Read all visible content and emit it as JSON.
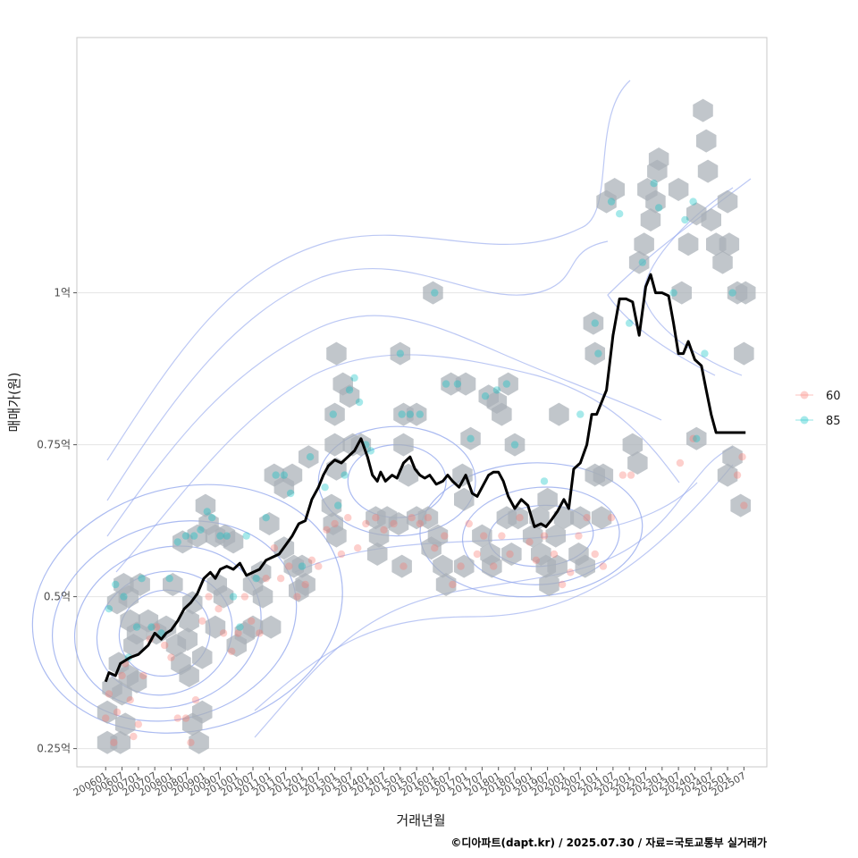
{
  "chart_data": {
    "type": "line",
    "xlabel": "거래년월",
    "ylabel": "매매가(원)",
    "caption": "©디아파트(dapt.kr) / 2025.07.30 / 자료=국토교통부 실거래가",
    "y_ticks": [
      {
        "value": 0.25,
        "label": "0.25억"
      },
      {
        "value": 0.5,
        "label": "0.5억"
      },
      {
        "value": 0.75,
        "label": "0.75억"
      },
      {
        "value": 1.0,
        "label": "1억"
      }
    ],
    "ylim": [
      0.22,
      1.42
    ],
    "xlim": [
      2005.12,
      2026.2
    ],
    "x_ticks": [
      "200601",
      "200607",
      "200701",
      "200707",
      "200801",
      "200807",
      "200901",
      "200907",
      "201001",
      "201007",
      "201101",
      "201107",
      "201201",
      "201207",
      "201301",
      "201307",
      "201401",
      "201407",
      "201501",
      "201507",
      "201601",
      "201607",
      "201701",
      "201707",
      "201801",
      "201807",
      "201901",
      "201907",
      "202001",
      "202007",
      "202101",
      "202107",
      "202201",
      "202207",
      "202301",
      "202307",
      "202401",
      "202407",
      "202501",
      "202507"
    ],
    "legend": {
      "title": "",
      "position": "right",
      "entries": [
        {
          "label": "60",
          "color": "#F8766D"
        },
        {
          "label": "85",
          "color": "#00BFC4"
        }
      ]
    },
    "colors": {
      "hex": "#a9b0b7",
      "line": "#000000",
      "contour": "#8fa4ec",
      "grid": "#e5e5e5",
      "panel_border": "#c8c8c8"
    },
    "trend_line": {
      "name": "median price",
      "x": [
        2006.0,
        2006.1,
        2006.3,
        2006.45,
        2006.6,
        2006.75,
        2007.0,
        2007.3,
        2007.5,
        2007.7,
        2007.85,
        2008.0,
        2008.2,
        2008.4,
        2008.6,
        2008.8,
        2009.0,
        2009.2,
        2009.35,
        2009.5,
        2009.7,
        2009.9,
        2010.1,
        2010.3,
        2010.5,
        2010.7,
        2010.9,
        2011.1,
        2011.3,
        2011.5,
        2011.7,
        2011.9,
        2012.1,
        2012.3,
        2012.5,
        2012.65,
        2012.8,
        2013.0,
        2013.2,
        2013.4,
        2013.6,
        2013.8,
        2014.0,
        2014.15,
        2014.3,
        2014.4,
        2014.55,
        2014.75,
        2014.9,
        2015.1,
        2015.3,
        2015.45,
        2015.6,
        2015.75,
        2015.9,
        2016.1,
        2016.3,
        2016.45,
        2016.6,
        2016.8,
        2017.0,
        2017.2,
        2017.35,
        2017.5,
        2017.7,
        2017.85,
        2018.0,
        2018.15,
        2018.3,
        2018.5,
        2018.7,
        2018.9,
        2019.1,
        2019.3,
        2019.45,
        2019.6,
        2019.8,
        2020.0,
        2020.15,
        2020.3,
        2020.5,
        2020.7,
        2020.85,
        2021.0,
        2021.15,
        2021.3,
        2021.5,
        2021.7,
        2021.9,
        2022.1,
        2022.3,
        2022.5,
        2022.65,
        2022.8,
        2023.0,
        2023.2,
        2023.35,
        2023.5,
        2023.65,
        2023.8,
        2024.0,
        2024.2,
        2024.35,
        2024.5,
        2024.65,
        2024.8,
        2024.95,
        2025.1,
        2025.25,
        2025.4,
        2025.55
      ],
      "y": [
        0.36,
        0.375,
        0.37,
        0.39,
        0.395,
        0.4,
        0.405,
        0.42,
        0.44,
        0.43,
        0.44,
        0.445,
        0.46,
        0.48,
        0.49,
        0.505,
        0.53,
        0.54,
        0.53,
        0.545,
        0.55,
        0.545,
        0.555,
        0.535,
        0.54,
        0.545,
        0.56,
        0.565,
        0.57,
        0.585,
        0.6,
        0.62,
        0.625,
        0.66,
        0.68,
        0.7,
        0.715,
        0.725,
        0.72,
        0.73,
        0.74,
        0.76,
        0.73,
        0.7,
        0.69,
        0.705,
        0.69,
        0.7,
        0.695,
        0.72,
        0.73,
        0.71,
        0.7,
        0.695,
        0.7,
        0.685,
        0.69,
        0.7,
        0.69,
        0.68,
        0.7,
        0.67,
        0.665,
        0.68,
        0.7,
        0.705,
        0.705,
        0.69,
        0.665,
        0.645,
        0.66,
        0.65,
        0.615,
        0.62,
        0.615,
        0.625,
        0.64,
        0.66,
        0.645,
        0.71,
        0.72,
        0.75,
        0.8,
        0.8,
        0.82,
        0.84,
        0.93,
        0.99,
        0.99,
        0.985,
        0.93,
        1.01,
        1.03,
        1.0,
        1.0,
        0.995,
        0.95,
        0.9,
        0.9,
        0.92,
        0.89,
        0.88,
        0.84,
        0.8,
        0.77,
        0.77,
        0.77,
        0.77,
        0.77,
        0.77,
        0.77
      ]
    },
    "hexbin_cells": [
      [
        2006.05,
        0.26
      ],
      [
        2006.05,
        0.31
      ],
      [
        2006.2,
        0.35
      ],
      [
        2006.4,
        0.39
      ],
      [
        2006.5,
        0.34
      ],
      [
        2006.45,
        0.26
      ],
      [
        2006.6,
        0.29
      ],
      [
        2006.7,
        0.37
      ],
      [
        2006.85,
        0.42
      ],
      [
        2006.95,
        0.44
      ],
      [
        2006.95,
        0.36
      ],
      [
        2006.75,
        0.46
      ],
      [
        2006.7,
        0.5
      ],
      [
        2006.35,
        0.49
      ],
      [
        2006.55,
        0.52
      ],
      [
        2007.05,
        0.52
      ],
      [
        2007.3,
        0.46
      ],
      [
        2007.55,
        0.44
      ],
      [
        2007.85,
        0.45
      ],
      [
        2008.05,
        0.52
      ],
      [
        2008.15,
        0.42
      ],
      [
        2008.3,
        0.39
      ],
      [
        2008.5,
        0.43
      ],
      [
        2008.55,
        0.37
      ],
      [
        2008.65,
        0.29
      ],
      [
        2008.85,
        0.26
      ],
      [
        2008.95,
        0.31
      ],
      [
        2008.95,
        0.4
      ],
      [
        2008.55,
        0.46
      ],
      [
        2008.65,
        0.49
      ],
      [
        2008.35,
        0.59
      ],
      [
        2008.8,
        0.6
      ],
      [
        2009.05,
        0.65
      ],
      [
        2009.15,
        0.62
      ],
      [
        2009.35,
        0.6
      ],
      [
        2009.4,
        0.52
      ],
      [
        2009.35,
        0.45
      ],
      [
        2009.6,
        0.5
      ],
      [
        2009.65,
        0.6
      ],
      [
        2009.9,
        0.59
      ],
      [
        2010.0,
        0.42
      ],
      [
        2010.25,
        0.44
      ],
      [
        2010.5,
        0.45
      ],
      [
        2010.5,
        0.52
      ],
      [
        2010.75,
        0.54
      ],
      [
        2010.8,
        0.5
      ],
      [
        2011.05,
        0.45
      ],
      [
        2011.0,
        0.62
      ],
      [
        2011.15,
        0.7
      ],
      [
        2011.45,
        0.68
      ],
      [
        2011.45,
        0.58
      ],
      [
        2011.7,
        0.7
      ],
      [
        2011.75,
        0.55
      ],
      [
        2011.9,
        0.51
      ],
      [
        2012.1,
        0.52
      ],
      [
        2012.0,
        0.55
      ],
      [
        2012.2,
        0.73
      ],
      [
        2012.9,
        0.65
      ],
      [
        2012.95,
        0.62
      ],
      [
        2013.05,
        0.6
      ],
      [
        2013.0,
        0.75
      ],
      [
        2013.05,
        0.71
      ],
      [
        2013.25,
        0.85
      ],
      [
        2013.45,
        0.83
      ],
      [
        2013.55,
        0.75
      ],
      [
        2013.8,
        0.75
      ],
      [
        2013.05,
        0.9
      ],
      [
        2013.0,
        0.8
      ],
      [
        2014.25,
        0.63
      ],
      [
        2014.35,
        0.6
      ],
      [
        2014.3,
        0.57
      ],
      [
        2014.6,
        0.63
      ],
      [
        2014.95,
        0.62
      ],
      [
        2015.05,
        0.55
      ],
      [
        2015.1,
        0.75
      ],
      [
        2015.1,
        0.8
      ],
      [
        2015.25,
        0.7
      ],
      [
        2015.5,
        0.63
      ],
      [
        2015.5,
        0.8
      ],
      [
        2015.85,
        0.63
      ],
      [
        2015.95,
        0.58
      ],
      [
        2016.15,
        0.6
      ],
      [
        2016.3,
        0.55
      ],
      [
        2016.4,
        0.52
      ],
      [
        2016.55,
        0.85
      ],
      [
        2016.9,
        0.7
      ],
      [
        2016.95,
        0.66
      ],
      [
        2016.95,
        0.55
      ],
      [
        2017.0,
        0.85
      ],
      [
        2017.15,
        0.76
      ],
      [
        2015.0,
        0.9
      ],
      [
        2016.0,
        1.0
      ],
      [
        2017.5,
        0.6
      ],
      [
        2017.75,
        0.57
      ],
      [
        2017.8,
        0.55
      ],
      [
        2017.7,
        0.83
      ],
      [
        2017.95,
        0.82
      ],
      [
        2018.1,
        0.8
      ],
      [
        2018.25,
        0.63
      ],
      [
        2018.4,
        0.57
      ],
      [
        2018.3,
        0.85
      ],
      [
        2018.5,
        0.75
      ],
      [
        2018.6,
        0.63
      ],
      [
        2019.05,
        0.6
      ],
      [
        2019.25,
        0.63
      ],
      [
        2019.3,
        0.57
      ],
      [
        2019.45,
        0.55
      ],
      [
        2019.5,
        0.66
      ],
      [
        2019.55,
        0.52
      ],
      [
        2019.75,
        0.6
      ],
      [
        2019.8,
        0.55
      ],
      [
        2019.85,
        0.8
      ],
      [
        2020.0,
        0.63
      ],
      [
        2020.45,
        0.57
      ],
      [
        2020.5,
        0.63
      ],
      [
        2020.65,
        0.55
      ],
      [
        2020.95,
        0.7
      ],
      [
        2021.15,
        0.63
      ],
      [
        2021.2,
        0.7
      ],
      [
        2020.9,
        0.95
      ],
      [
        2020.95,
        0.9
      ],
      [
        2021.3,
        1.15
      ],
      [
        2021.55,
        1.17
      ],
      [
        2022.1,
        0.75
      ],
      [
        2022.25,
        0.72
      ],
      [
        2022.3,
        1.05
      ],
      [
        2022.45,
        1.08
      ],
      [
        2022.55,
        1.17
      ],
      [
        2022.65,
        1.12
      ],
      [
        2022.8,
        1.15
      ],
      [
        2022.85,
        1.2
      ],
      [
        2022.9,
        1.22
      ],
      [
        2023.5,
        1.17
      ],
      [
        2023.6,
        1.0
      ],
      [
        2023.8,
        1.08
      ],
      [
        2024.05,
        1.13
      ],
      [
        2024.25,
        1.3
      ],
      [
        2024.35,
        1.25
      ],
      [
        2024.4,
        1.2
      ],
      [
        2024.5,
        1.12
      ],
      [
        2024.05,
        0.76
      ],
      [
        2024.65,
        1.08
      ],
      [
        2024.85,
        1.05
      ],
      [
        2025.0,
        1.15
      ],
      [
        2025.05,
        1.08
      ],
      [
        2025.3,
        1.0
      ],
      [
        2025.15,
        0.73
      ],
      [
        2025.0,
        0.7
      ],
      [
        2025.4,
        0.65
      ],
      [
        2025.5,
        0.9
      ],
      [
        2025.55,
        1.0
      ]
    ],
    "points_60": [
      [
        2006.0,
        0.3
      ],
      [
        2006.1,
        0.34
      ],
      [
        2006.25,
        0.26
      ],
      [
        2006.35,
        0.31
      ],
      [
        2006.5,
        0.37
      ],
      [
        2006.6,
        0.39
      ],
      [
        2006.75,
        0.33
      ],
      [
        2006.85,
        0.27
      ],
      [
        2007.0,
        0.29
      ],
      [
        2007.15,
        0.37
      ],
      [
        2007.35,
        0.43
      ],
      [
        2007.55,
        0.45
      ],
      [
        2007.8,
        0.42
      ],
      [
        2008.0,
        0.4
      ],
      [
        2008.2,
        0.3
      ],
      [
        2008.45,
        0.3
      ],
      [
        2008.6,
        0.26
      ],
      [
        2008.75,
        0.33
      ],
      [
        2008.95,
        0.46
      ],
      [
        2009.15,
        0.5
      ],
      [
        2009.45,
        0.48
      ],
      [
        2009.6,
        0.44
      ],
      [
        2009.85,
        0.41
      ],
      [
        2010.05,
        0.44
      ],
      [
        2010.25,
        0.5
      ],
      [
        2010.45,
        0.46
      ],
      [
        2010.7,
        0.44
      ],
      [
        2010.9,
        0.53
      ],
      [
        2011.15,
        0.58
      ],
      [
        2011.35,
        0.53
      ],
      [
        2011.6,
        0.55
      ],
      [
        2011.85,
        0.5
      ],
      [
        2012.1,
        0.52
      ],
      [
        2012.3,
        0.56
      ],
      [
        2012.5,
        0.55
      ],
      [
        2012.75,
        0.61
      ],
      [
        2013.0,
        0.62
      ],
      [
        2013.2,
        0.57
      ],
      [
        2013.4,
        0.63
      ],
      [
        2013.7,
        0.58
      ],
      [
        2013.95,
        0.62
      ],
      [
        2014.25,
        0.63
      ],
      [
        2014.5,
        0.61
      ],
      [
        2014.8,
        0.62
      ],
      [
        2015.1,
        0.55
      ],
      [
        2015.35,
        0.63
      ],
      [
        2015.6,
        0.62
      ],
      [
        2015.85,
        0.63
      ],
      [
        2016.05,
        0.58
      ],
      [
        2016.35,
        0.6
      ],
      [
        2016.6,
        0.52
      ],
      [
        2016.85,
        0.55
      ],
      [
        2017.1,
        0.62
      ],
      [
        2017.35,
        0.57
      ],
      [
        2017.55,
        0.6
      ],
      [
        2017.85,
        0.55
      ],
      [
        2018.1,
        0.6
      ],
      [
        2018.35,
        0.57
      ],
      [
        2018.65,
        0.63
      ],
      [
        2018.95,
        0.59
      ],
      [
        2019.15,
        0.56
      ],
      [
        2019.4,
        0.6
      ],
      [
        2019.7,
        0.57
      ],
      [
        2019.95,
        0.52
      ],
      [
        2020.2,
        0.54
      ],
      [
        2020.45,
        0.6
      ],
      [
        2020.7,
        0.63
      ],
      [
        2020.95,
        0.57
      ],
      [
        2021.2,
        0.55
      ],
      [
        2021.45,
        0.63
      ],
      [
        2021.8,
        0.7
      ],
      [
        2022.05,
        0.7
      ],
      [
        2023.55,
        0.72
      ],
      [
        2023.95,
        0.76
      ],
      [
        2025.3,
        0.7
      ],
      [
        2025.45,
        0.73
      ],
      [
        2025.5,
        0.65
      ]
    ],
    "points_85": [
      [
        2006.1,
        0.48
      ],
      [
        2006.3,
        0.52
      ],
      [
        2006.55,
        0.5
      ],
      [
        2006.7,
        0.4
      ],
      [
        2006.95,
        0.45
      ],
      [
        2007.1,
        0.53
      ],
      [
        2007.4,
        0.45
      ],
      [
        2007.7,
        0.44
      ],
      [
        2007.95,
        0.53
      ],
      [
        2008.2,
        0.59
      ],
      [
        2008.45,
        0.6
      ],
      [
        2008.7,
        0.6
      ],
      [
        2008.9,
        0.61
      ],
      [
        2009.1,
        0.64
      ],
      [
        2009.25,
        0.63
      ],
      [
        2009.5,
        0.6
      ],
      [
        2009.7,
        0.6
      ],
      [
        2009.9,
        0.5
      ],
      [
        2010.1,
        0.45
      ],
      [
        2010.3,
        0.6
      ],
      [
        2010.6,
        0.53
      ],
      [
        2010.9,
        0.63
      ],
      [
        2011.2,
        0.7
      ],
      [
        2011.45,
        0.7
      ],
      [
        2011.65,
        0.67
      ],
      [
        2012.0,
        0.55
      ],
      [
        2012.25,
        0.73
      ],
      [
        2012.7,
        0.68
      ],
      [
        2012.95,
        0.8
      ],
      [
        2013.1,
        0.65
      ],
      [
        2013.3,
        0.7
      ],
      [
        2013.45,
        0.84
      ],
      [
        2013.6,
        0.86
      ],
      [
        2013.75,
        0.82
      ],
      [
        2013.95,
        0.75
      ],
      [
        2014.1,
        0.74
      ],
      [
        2015.0,
        0.9
      ],
      [
        2015.05,
        0.8
      ],
      [
        2015.3,
        0.8
      ],
      [
        2015.6,
        0.8
      ],
      [
        2016.05,
        1.0
      ],
      [
        2016.4,
        0.85
      ],
      [
        2016.75,
        0.85
      ],
      [
        2017.15,
        0.76
      ],
      [
        2017.6,
        0.83
      ],
      [
        2017.95,
        0.84
      ],
      [
        2018.25,
        0.85
      ],
      [
        2018.5,
        0.75
      ],
      [
        2019.4,
        0.69
      ],
      [
        2020.5,
        0.8
      ],
      [
        2020.95,
        0.95
      ],
      [
        2021.05,
        0.9
      ],
      [
        2021.45,
        1.15
      ],
      [
        2021.7,
        1.13
      ],
      [
        2022.0,
        0.95
      ],
      [
        2022.4,
        1.05
      ],
      [
        2022.75,
        1.18
      ],
      [
        2022.9,
        1.14
      ],
      [
        2023.35,
        1.0
      ],
      [
        2023.7,
        1.12
      ],
      [
        2023.95,
        1.15
      ],
      [
        2024.05,
        0.76
      ],
      [
        2024.3,
        0.9
      ],
      [
        2025.15,
        1.0
      ]
    ]
  }
}
